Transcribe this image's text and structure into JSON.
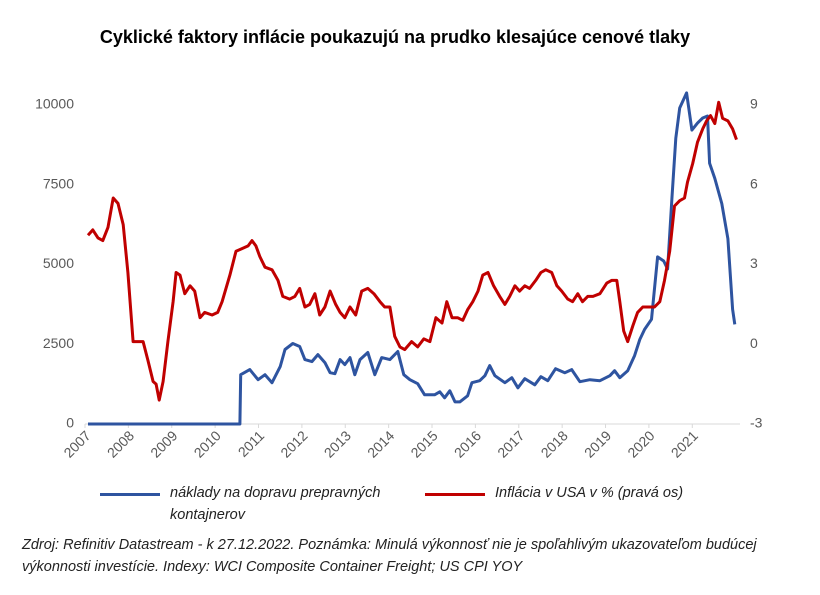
{
  "chart_data": {
    "type": "line",
    "title": "Cyklické faktory inflácie poukazujú na prudko klesajúce cenové tlaky",
    "note": "Zdroj: Refinitiv Datastream - k 27.12.2022. Poznámka: Minulá výkonnosť nie je spoľahlivým ukazovateľom budúcej výkonnosti investície. Indexy: WCI Composite Container Freight; US CPI YOY",
    "xlim": [
      2007,
      2022.1
    ],
    "xticks": [
      2007,
      2008,
      2009,
      2010,
      2011,
      2012,
      2013,
      2014,
      2015,
      2016,
      2017,
      2018,
      2019,
      2020,
      2021
    ],
    "ylim": [
      0,
      10000
    ],
    "yticks": [
      0,
      2500,
      5000,
      7500,
      10000
    ],
    "y2lim": [
      -3,
      9
    ],
    "y2ticks": [
      -3,
      0,
      3,
      6,
      9
    ],
    "grid": false,
    "series": [
      {
        "name": "náklady na dopravu prepravných kontajnerov",
        "color": "#2e54a0",
        "axis": "y",
        "x": [
          2007.07,
          2010.57,
          2010.59,
          2010.8,
          2010.99,
          2011.15,
          2011.31,
          2011.5,
          2011.61,
          2011.79,
          2011.95,
          2012.07,
          2012.23,
          2012.37,
          2012.53,
          2012.65,
          2012.76,
          2012.88,
          2012.99,
          2013.11,
          2013.22,
          2013.34,
          2013.52,
          2013.68,
          2013.84,
          2014.03,
          2014.21,
          2014.35,
          2014.49,
          2014.67,
          2014.83,
          2015.06,
          2015.18,
          2015.29,
          2015.41,
          2015.53,
          2015.64,
          2015.82,
          2015.92,
          2016.1,
          2016.22,
          2016.33,
          2016.45,
          2016.68,
          2016.84,
          2016.98,
          2017.14,
          2017.37,
          2017.51,
          2017.67,
          2017.85,
          2018.06,
          2018.22,
          2018.41,
          2018.64,
          2018.87,
          2019.1,
          2019.21,
          2019.33,
          2019.51,
          2019.67,
          2019.79,
          2019.9,
          2020.06,
          2020.2,
          2020.34,
          2020.43,
          2020.53,
          2020.62,
          2020.71,
          2020.87,
          2020.99,
          2021.12,
          2021.24,
          2021.35,
          2021.4,
          2021.52,
          2021.68,
          2021.82,
          2021.93,
          2021.98
        ],
        "values": [
          0,
          0,
          1546,
          1704,
          1388,
          1546,
          1294,
          1798,
          2335,
          2524,
          2429,
          2019,
          1956,
          2177,
          1925,
          1609,
          1578,
          2019,
          1861,
          2082,
          1546,
          2019,
          2240,
          1546,
          2082,
          2019,
          2272,
          1546,
          1388,
          1262,
          915,
          915,
          1010,
          820,
          1041,
          694,
          694,
          883,
          1294,
          1357,
          1514,
          1830,
          1514,
          1294,
          1451,
          1136,
          1420,
          1230,
          1483,
          1357,
          1735,
          1609,
          1704,
          1325,
          1388,
          1357,
          1514,
          1672,
          1451,
          1672,
          2145,
          2650,
          2966,
          3281,
          5237,
          5111,
          4859,
          7067,
          8960,
          9907,
          10380,
          9213,
          9433,
          9591,
          9654,
          8171,
          7698,
          6909,
          5805,
          3597,
          3123
        ]
      },
      {
        "name": "Inflácia v USA v % (pravá os)",
        "color": "#c00000",
        "axis": "y2",
        "x": [
          2007.07,
          2007.18,
          2007.3,
          2007.41,
          2007.53,
          2007.65,
          2007.76,
          2007.88,
          2007.99,
          2008.11,
          2008.22,
          2008.34,
          2008.45,
          2008.57,
          2008.64,
          2008.71,
          2008.8,
          2008.91,
          2009.03,
          2009.1,
          2009.19,
          2009.3,
          2009.42,
          2009.53,
          2009.65,
          2009.76,
          2009.93,
          2010.06,
          2010.16,
          2010.34,
          2010.48,
          2010.62,
          2010.76,
          2010.85,
          2010.94,
          2011.03,
          2011.15,
          2011.31,
          2011.45,
          2011.56,
          2011.72,
          2011.84,
          2011.95,
          2012.07,
          2012.18,
          2012.3,
          2012.41,
          2012.53,
          2012.65,
          2012.78,
          2012.88,
          2012.99,
          2013.11,
          2013.24,
          2013.38,
          2013.52,
          2013.66,
          2013.8,
          2013.91,
          2014.03,
          2014.14,
          2014.26,
          2014.37,
          2014.53,
          2014.67,
          2014.81,
          2014.95,
          2015.09,
          2015.23,
          2015.34,
          2015.46,
          2015.59,
          2015.71,
          2015.82,
          2015.94,
          2016.06,
          2016.17,
          2016.29,
          2016.42,
          2016.56,
          2016.68,
          2016.79,
          2016.91,
          2017.02,
          2017.14,
          2017.25,
          2017.39,
          2017.51,
          2017.62,
          2017.76,
          2017.88,
          2017.99,
          2018.13,
          2018.24,
          2018.36,
          2018.47,
          2018.59,
          2018.71,
          2018.87,
          2019.03,
          2019.14,
          2019.26,
          2019.33,
          2019.42,
          2019.51,
          2019.63,
          2019.74,
          2019.86,
          2019.97,
          2020.13,
          2020.25,
          2020.36,
          2020.48,
          2020.59,
          2020.71,
          2020.82,
          2020.89,
          2021.01,
          2021.12,
          2021.24,
          2021.33,
          2021.42,
          2021.52,
          2021.61,
          2021.7,
          2021.82,
          2021.93,
          2022.02
        ],
        "values": [
          4.1,
          4.3,
          4.0,
          3.9,
          4.4,
          5.5,
          5.3,
          4.5,
          2.7,
          0.1,
          0.1,
          0.1,
          -0.6,
          -1.4,
          -1.5,
          -2.1,
          -1.4,
          0.1,
          1.6,
          2.7,
          2.6,
          1.9,
          2.2,
          2.0,
          1.0,
          1.2,
          1.1,
          1.2,
          1.6,
          2.6,
          3.5,
          3.6,
          3.7,
          3.9,
          3.7,
          3.3,
          2.9,
          2.8,
          2.4,
          1.8,
          1.7,
          1.8,
          2.1,
          1.4,
          1.5,
          1.9,
          1.1,
          1.4,
          2.0,
          1.5,
          1.2,
          1.0,
          1.4,
          1.1,
          2.0,
          2.1,
          1.9,
          1.6,
          1.4,
          1.4,
          0.3,
          -0.1,
          -0.2,
          0.1,
          -0.1,
          0.2,
          0.1,
          1.0,
          0.8,
          1.6,
          1.0,
          1.0,
          0.9,
          1.3,
          1.6,
          2.0,
          2.6,
          2.7,
          2.2,
          1.8,
          1.5,
          1.8,
          2.2,
          2.0,
          2.2,
          2.1,
          2.4,
          2.7,
          2.8,
          2.7,
          2.2,
          2.0,
          1.7,
          1.6,
          1.9,
          1.6,
          1.8,
          1.8,
          1.9,
          2.3,
          2.4,
          2.4,
          1.6,
          0.5,
          0.1,
          0.7,
          1.2,
          1.4,
          1.4,
          1.4,
          1.6,
          2.4,
          3.5,
          5.2,
          5.4,
          5.5,
          6.1,
          6.8,
          7.6,
          8.1,
          8.4,
          8.6,
          8.3,
          9.1,
          8.5,
          8.4,
          8.1,
          7.7
        ]
      }
    ]
  }
}
